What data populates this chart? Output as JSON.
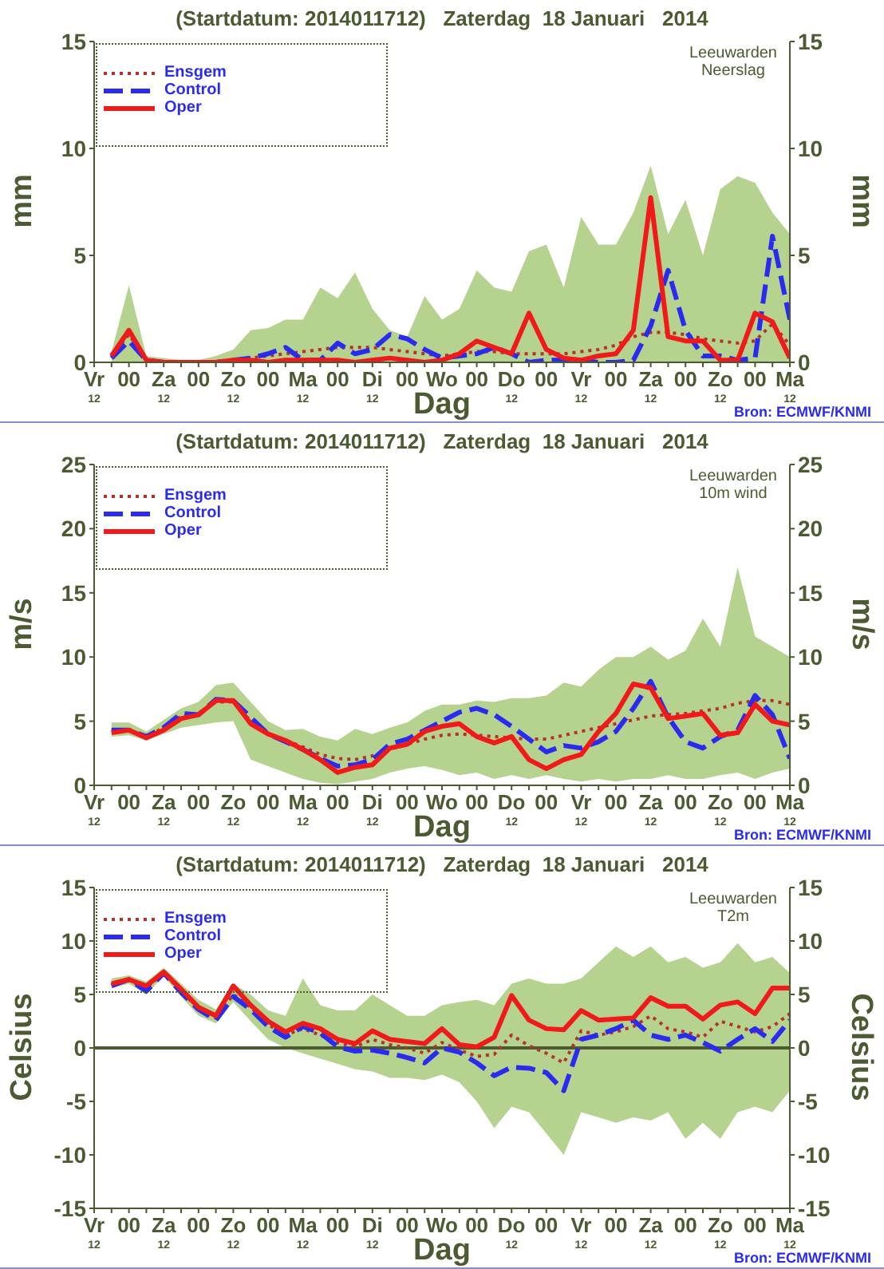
{
  "chart_data": [
    {
      "type": "line",
      "title": "(Startdatum: 2014011712)   Zaterdag  18 Januari   2014",
      "xlabel": "Dag",
      "ylabel": "mm",
      "y2label": "mm",
      "annotations": [
        "Leeuwarden",
        "Neerslag",
        "Bron: ECMWF/KNMI"
      ],
      "categories": [
        "Vr\n12",
        null,
        "00",
        null,
        "Za\n12",
        null,
        "00",
        null,
        "Zo\n12",
        null,
        "00",
        null,
        "Ma\n12",
        null,
        "00",
        null,
        "Di\n12",
        null,
        "00",
        null,
        "Wo",
        null,
        "00",
        null,
        "Do\n12",
        null,
        "00",
        null,
        "Vr\n12",
        null,
        "00",
        null,
        "Za\n12",
        null,
        "00",
        null,
        "Zo\n12",
        null,
        "00",
        null,
        "Ma\n12"
      ],
      "ylim": [
        0,
        15
      ],
      "yticks": [
        0,
        5,
        10,
        15
      ],
      "y2lim": [
        0,
        15
      ],
      "y2ticks": [
        0,
        5,
        10,
        15
      ],
      "legend": "top left",
      "marker": "none",
      "series": [
        {
          "name": "Ensgem",
          "color": "#b5312a",
          "line_style": "dotted",
          "values": [
            null,
            0.3,
            1.3,
            0.1,
            0,
            0,
            0,
            0,
            0.1,
            0.2,
            0.3,
            0.4,
            0.5,
            0.6,
            0.7,
            0.7,
            0.7,
            0.6,
            0.5,
            0.4,
            0.3,
            0.4,
            0.5,
            0.5,
            0.4,
            0.4,
            0.4,
            0.4,
            0.5,
            0.6,
            0.8,
            1.2,
            1.4,
            1.4,
            1.3,
            1.1,
            1.0,
            0.9,
            1.0,
            1.8,
            0.8
          ],
          "lower": [
            null,
            0,
            0,
            0,
            0,
            0,
            0,
            0,
            0,
            0,
            0,
            0,
            0,
            0,
            0,
            0,
            0,
            0,
            0,
            0,
            0,
            0,
            0,
            0,
            0,
            0,
            0,
            0,
            0,
            0,
            0,
            0,
            0,
            0,
            0,
            0,
            0,
            0,
            0,
            0,
            0
          ],
          "upper": [
            null,
            0.5,
            3.6,
            0.3,
            0.2,
            0.1,
            0.1,
            0.3,
            0.6,
            1.5,
            1.6,
            2.0,
            2.0,
            3.5,
            3.0,
            4.2,
            2.5,
            1.5,
            1.2,
            3.1,
            2.0,
            2.5,
            4.3,
            3.5,
            3.3,
            5.2,
            5.5,
            3.5,
            6.8,
            5.5,
            5.5,
            7.0,
            9.2,
            6.0,
            7.6,
            5.0,
            8.1,
            8.7,
            8.4,
            7.0,
            6.0
          ]
        },
        {
          "name": "Control",
          "color": "#2b2bf0",
          "line_style": "dashed",
          "values": [
            null,
            0.2,
            1.0,
            0.1,
            0,
            0,
            0,
            0,
            0.1,
            0.2,
            0.4,
            0.7,
            0.1,
            0.1,
            0.9,
            0.4,
            0.6,
            1.3,
            1.1,
            0.6,
            0.2,
            0.3,
            0.4,
            0.7,
            0.4,
            0,
            0.1,
            0.1,
            0.1,
            0,
            0,
            0.1,
            1.7,
            4.3,
            1.5,
            0.3,
            0.3,
            0.1,
            0.2,
            5.9,
            2.0
          ]
        },
        {
          "name": "Oper",
          "color": "#f01a1a",
          "line_style": "solid",
          "values": [
            null,
            0.3,
            1.5,
            0.1,
            0,
            0,
            0,
            0,
            0.1,
            0.1,
            0,
            0.1,
            0.1,
            0.1,
            0.1,
            0,
            0.1,
            0.2,
            0.1,
            0,
            0.1,
            0.4,
            1.0,
            0.7,
            0.4,
            2.3,
            0.6,
            0.2,
            0.1,
            0.3,
            0.4,
            1.5,
            7.7,
            1.2,
            1.0,
            1.0,
            0.1,
            0.1,
            2.3,
            1.9,
            0.2
          ]
        }
      ]
    },
    {
      "type": "line",
      "title": "(Startdatum: 2014011712)   Zaterdag  18 Januari   2014",
      "xlabel": "Dag",
      "ylabel": "m/s",
      "y2label": "m/s",
      "annotations": [
        "Leeuwarden",
        "10m wind",
        "Bron: ECMWF/KNMI"
      ],
      "categories": [
        "Vr\n12",
        null,
        "00",
        null,
        "Za\n12",
        null,
        "00",
        null,
        "Zo\n12",
        null,
        "00",
        null,
        "Ma\n12",
        null,
        "00",
        null,
        "Di\n12",
        null,
        "00",
        null,
        "Wo",
        null,
        "00",
        null,
        "Do\n12",
        null,
        "00",
        null,
        "Vr\n12",
        null,
        "00",
        null,
        "Za\n12",
        null,
        "00",
        null,
        "Zo\n12",
        null,
        "00",
        null,
        "Ma\n12"
      ],
      "ylim": [
        0,
        25
      ],
      "yticks": [
        0,
        5,
        10,
        15,
        20,
        25
      ],
      "y2lim": [
        0,
        25
      ],
      "y2ticks": [
        0,
        5,
        10,
        15,
        20,
        25
      ],
      "legend": "top left",
      "marker": "none",
      "series": [
        {
          "name": "Ensgem",
          "color": "#b5312a",
          "line_style": "dotted",
          "values": [
            null,
            4.3,
            4.3,
            3.8,
            4.5,
            5.4,
            5.6,
            6.5,
            6.5,
            5.0,
            4.0,
            3.5,
            3.0,
            2.4,
            2.1,
            2.0,
            2.3,
            2.8,
            3.2,
            3.6,
            3.9,
            4.0,
            3.9,
            3.8,
            3.7,
            3.6,
            3.6,
            3.9,
            4.2,
            4.5,
            4.8,
            5.1,
            5.4,
            5.5,
            5.6,
            5.8,
            6.0,
            6.4,
            6.6,
            6.6,
            6.3
          ],
          "lower": [
            null,
            3.8,
            3.9,
            3.5,
            4.0,
            4.5,
            4.7,
            4.9,
            5.0,
            2.0,
            1.5,
            1.0,
            0.5,
            0.2,
            0.1,
            0.3,
            0.5,
            1.0,
            1.3,
            1.5,
            1.2,
            0.8,
            1.0,
            0.5,
            0.8,
            0.5,
            0.8,
            0.5,
            0.3,
            0.5,
            0.3,
            0.5,
            0.5,
            0.8,
            0.5,
            0.5,
            0.8,
            1.0,
            0.5,
            1.0,
            1.3
          ],
          "upper": [
            null,
            4.9,
            4.9,
            4.2,
            5.1,
            6.0,
            6.5,
            7.8,
            8.0,
            6.5,
            5.0,
            4.3,
            4.4,
            3.8,
            3.5,
            4.4,
            4.0,
            4.5,
            4.9,
            5.8,
            6.3,
            6.3,
            6.6,
            6.5,
            6.8,
            6.8,
            7.0,
            8.0,
            7.7,
            9.0,
            10.0,
            10.0,
            10.8,
            9.8,
            10.5,
            13.0,
            10.8,
            17.0,
            11.6,
            10.8,
            10.0
          ]
        },
        {
          "name": "Control",
          "color": "#2b2bf0",
          "line_style": "dashed",
          "values": [
            null,
            4.3,
            4.3,
            3.8,
            4.5,
            5.6,
            5.5,
            6.7,
            6.6,
            5.3,
            4.0,
            3.4,
            2.8,
            2.1,
            1.5,
            1.6,
            2.0,
            3.2,
            3.6,
            4.3,
            5.0,
            5.7,
            6.0,
            5.5,
            4.6,
            3.6,
            2.6,
            3.1,
            2.9,
            3.4,
            4.2,
            6.0,
            8.1,
            5.3,
            3.4,
            2.9,
            3.8,
            4.3,
            7.0,
            5.5,
            2.1
          ]
        },
        {
          "name": "Oper",
          "color": "#f01a1a",
          "line_style": "solid",
          "values": [
            null,
            4.1,
            4.3,
            3.7,
            4.3,
            5.2,
            5.5,
            6.6,
            6.6,
            4.8,
            4.0,
            3.5,
            2.8,
            2.0,
            1.0,
            1.4,
            1.6,
            2.9,
            3.2,
            4.2,
            4.6,
            4.8,
            3.8,
            3.3,
            3.8,
            2.0,
            1.3,
            2.0,
            2.4,
            4.2,
            5.6,
            7.9,
            7.6,
            5.2,
            5.4,
            5.6,
            3.9,
            4.1,
            6.3,
            5.0,
            4.7
          ]
        }
      ]
    },
    {
      "type": "line",
      "title": "(Startdatum: 2014011712)   Zaterdag  18 Januari   2014",
      "xlabel": "Dag",
      "ylabel": "Celsius",
      "y2label": "Celsius",
      "annotations": [
        "Leeuwarden",
        "T2m",
        "Bron: ECMWF/KNMI"
      ],
      "categories": [
        "Vr\n12",
        null,
        "00",
        null,
        "Za\n12",
        null,
        "00",
        null,
        "Zo\n12",
        null,
        "00",
        null,
        "Ma\n12",
        null,
        "00",
        null,
        "Di\n12",
        null,
        "00",
        null,
        "Wo",
        null,
        "00",
        null,
        "Do\n12",
        null,
        "00",
        null,
        "Vr\n12",
        null,
        "00",
        null,
        "Za\n12",
        null,
        "00",
        null,
        "Zo\n12",
        null,
        "00",
        null,
        "Ma\n12"
      ],
      "ylim": [
        -15,
        15
      ],
      "yticks": [
        -15,
        -10,
        -5,
        0,
        5,
        10,
        15
      ],
      "y2lim": [
        -15,
        15
      ],
      "y2ticks": [
        -15,
        -10,
        -5,
        0,
        5,
        10,
        15
      ],
      "legend": "top left",
      "marker": "none",
      "ref_lines": [
        {
          "axis": "y",
          "value": 0,
          "color": "#4b5a30"
        }
      ],
      "series": [
        {
          "name": "Ensgem",
          "color": "#b5312a",
          "line_style": "dotted",
          "values": [
            null,
            5.9,
            6.3,
            5.6,
            7.0,
            5.3,
            3.7,
            2.8,
            5.0,
            3.8,
            2.2,
            1.2,
            1.8,
            1.2,
            0.5,
            0.1,
            0.8,
            0.3,
            0.0,
            -0.5,
            0.5,
            -0.2,
            -0.8,
            -0.6,
            1.2,
            0.2,
            -0.5,
            -1.4,
            1.6,
            1.2,
            1.5,
            2.0,
            3.0,
            1.8,
            1.5,
            1.0,
            2.5,
            2.0,
            1.5,
            2.0,
            3.2
          ],
          "lower": [
            null,
            5.6,
            6.0,
            5.0,
            6.7,
            4.8,
            3.0,
            2.3,
            4.3,
            2.5,
            0.8,
            0.0,
            -0.5,
            -1.0,
            -1.5,
            -2.0,
            -2.2,
            -2.8,
            -2.8,
            -3.0,
            -2.5,
            -3.2,
            -5.0,
            -7.5,
            -5.5,
            -6.0,
            -8.0,
            -10.0,
            -6.0,
            -6.5,
            -7.0,
            -6.5,
            -6.8,
            -6.0,
            -8.5,
            -7.0,
            -8.5,
            -6.0,
            -5.5,
            -6.0,
            -4.0
          ],
          "upper": [
            null,
            6.5,
            6.8,
            6.2,
            7.5,
            6.0,
            4.5,
            3.6,
            6.0,
            5.0,
            3.5,
            3.0,
            6.5,
            4.0,
            3.5,
            3.5,
            5.0,
            4.0,
            3.0,
            3.0,
            4.0,
            4.3,
            4.5,
            4.0,
            6.0,
            6.5,
            6.0,
            6.0,
            6.5,
            8.0,
            9.5,
            8.5,
            9.5,
            8.0,
            8.5,
            7.5,
            8.0,
            9.8,
            8.0,
            8.5,
            7.0
          ]
        },
        {
          "name": "Control",
          "color": "#2b2bf0",
          "line_style": "dashed",
          "values": [
            null,
            5.8,
            6.4,
            5.3,
            7.0,
            5.2,
            3.6,
            2.6,
            4.8,
            3.6,
            2.0,
            1.0,
            2.0,
            1.4,
            0.1,
            -0.3,
            -0.2,
            -0.5,
            -0.9,
            -1.4,
            0.0,
            -0.4,
            -1.4,
            -2.6,
            -1.8,
            -1.9,
            -2.3,
            -4.0,
            0.8,
            1.2,
            1.8,
            2.6,
            1.2,
            0.8,
            1.2,
            0.5,
            -0.3,
            0.8,
            1.8,
            0.6,
            2.6
          ]
        },
        {
          "name": "Oper",
          "color": "#f01a1a",
          "line_style": "solid",
          "values": [
            null,
            6.0,
            6.4,
            5.8,
            7.1,
            5.5,
            3.8,
            3.0,
            5.8,
            4.0,
            2.5,
            1.5,
            2.3,
            1.8,
            0.8,
            0.4,
            1.6,
            0.8,
            0.6,
            0.4,
            1.8,
            0.3,
            0.1,
            1.0,
            4.9,
            2.6,
            1.8,
            1.7,
            3.5,
            2.6,
            2.7,
            2.8,
            4.7,
            3.9,
            3.9,
            2.7,
            4.0,
            4.3,
            3.2,
            5.6,
            5.6
          ]
        }
      ]
    }
  ]
}
